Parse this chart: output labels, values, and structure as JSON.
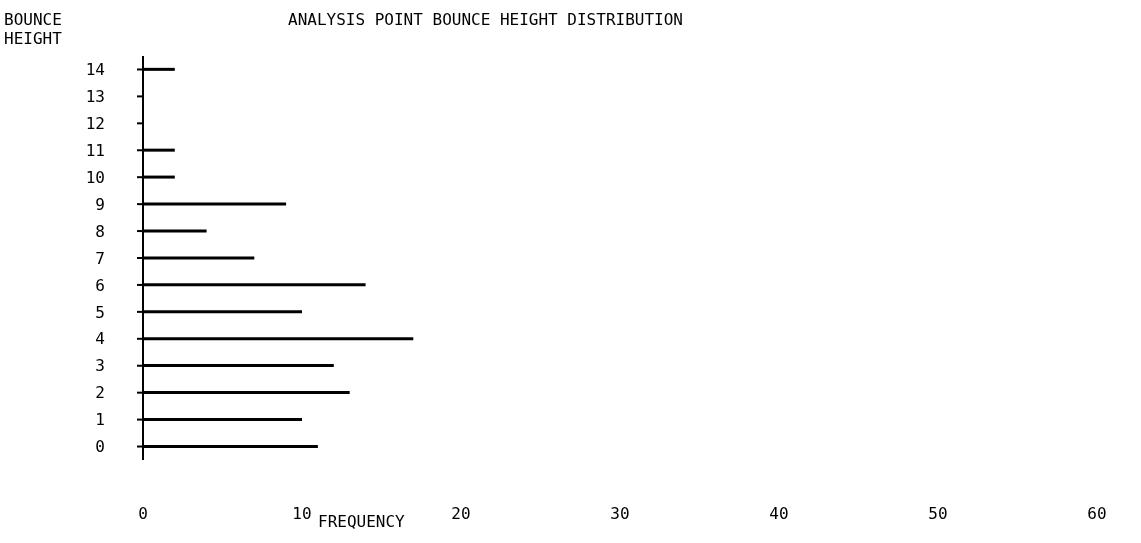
{
  "chart_data": {
    "type": "bar",
    "orientation": "horizontal",
    "title": "ANALYSIS POINT BOUNCE HEIGHT DISTRIBUTION",
    "ylabel": "BOUNCE HEIGHT",
    "xlabel": "FREQUENCY",
    "categories": [
      "14",
      "13",
      "12",
      "11",
      "10",
      "9",
      "8",
      "7",
      "6",
      "5",
      "4",
      "3",
      "2",
      "1",
      "0"
    ],
    "values": [
      2,
      0,
      0,
      2,
      2,
      9,
      4,
      7,
      14,
      10,
      17,
      12,
      13,
      10,
      11
    ],
    "color": "#000000",
    "xlim": [
      0,
      60
    ],
    "xticks": [
      0,
      10,
      20,
      30,
      40,
      50,
      60
    ],
    "grid": false,
    "legend": false
  }
}
